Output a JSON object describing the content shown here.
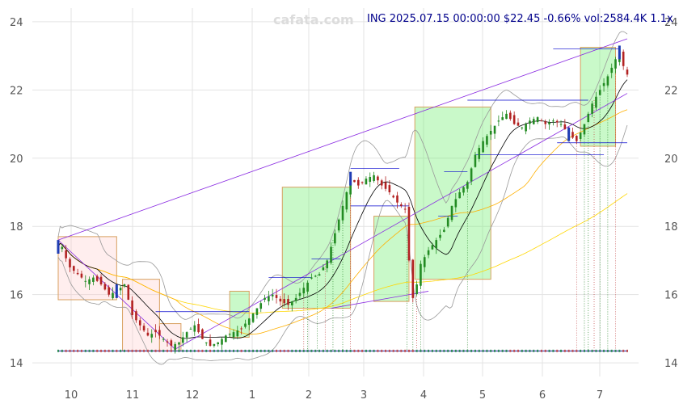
{
  "header": {
    "watermark": "cafata.com",
    "info": "ING 2025.07.15 00:00:00 $22.45 -0.66% vol:2584.4K 1.1x"
  },
  "chart_data": {
    "type": "candlestick",
    "ticker": "ING",
    "x_tick_labels": [
      "10",
      "11",
      "12",
      "1",
      "2",
      "3",
      "4",
      "5",
      "6",
      "7"
    ],
    "y_ticks": [
      14,
      16,
      18,
      20,
      22,
      24
    ],
    "ylim": [
      13.6,
      24.4
    ],
    "grid": true,
    "last_price": 22.45,
    "change_pct": -0.66,
    "volume": "2584.4K",
    "volume_ratio": "1.1x",
    "date": "2025.07.15",
    "close_path": [
      [
        0,
        17.4
      ],
      [
        1,
        17.6
      ],
      [
        3,
        17.2
      ],
      [
        6,
        16.8
      ],
      [
        10,
        16.6
      ],
      [
        14,
        16.4
      ],
      [
        18,
        16.5
      ],
      [
        22,
        16.3
      ],
      [
        26,
        16.0
      ],
      [
        30,
        16.1
      ],
      [
        34,
        16.3
      ],
      [
        38,
        15.4
      ],
      [
        42,
        15.1
      ],
      [
        46,
        14.8
      ],
      [
        50,
        14.9
      ],
      [
        54,
        14.7
      ],
      [
        58,
        14.5
      ],
      [
        62,
        14.6
      ],
      [
        66,
        14.9
      ],
      [
        70,
        15.1
      ],
      [
        74,
        14.7
      ],
      [
        78,
        14.5
      ],
      [
        82,
        14.6
      ],
      [
        86,
        14.8
      ],
      [
        90,
        14.9
      ],
      [
        94,
        15.0
      ],
      [
        98,
        15.3
      ],
      [
        102,
        15.6
      ],
      [
        106,
        15.9
      ],
      [
        110,
        16.0
      ],
      [
        114,
        15.8
      ],
      [
        118,
        15.7
      ],
      [
        122,
        15.9
      ],
      [
        126,
        16.2
      ],
      [
        130,
        16.5
      ],
      [
        134,
        16.6
      ],
      [
        138,
        17.0
      ],
      [
        142,
        17.8
      ],
      [
        146,
        18.6
      ],
      [
        150,
        19.4
      ],
      [
        154,
        19.2
      ],
      [
        158,
        19.4
      ],
      [
        162,
        19.5
      ],
      [
        166,
        19.2
      ],
      [
        170,
        19.0
      ],
      [
        174,
        18.7
      ],
      [
        178,
        18.5
      ],
      [
        180,
        17.0
      ],
      [
        182,
        15.9
      ],
      [
        184,
        16.3
      ],
      [
        186,
        16.9
      ],
      [
        190,
        17.3
      ],
      [
        194,
        17.6
      ],
      [
        198,
        17.9
      ],
      [
        202,
        18.6
      ],
      [
        206,
        19.0
      ],
      [
        210,
        19.3
      ],
      [
        214,
        20.1
      ],
      [
        218,
        20.5
      ],
      [
        222,
        20.8
      ],
      [
        226,
        21.1
      ],
      [
        230,
        21.3
      ],
      [
        234,
        21.0
      ],
      [
        238,
        20.9
      ],
      [
        242,
        21.1
      ],
      [
        246,
        21.2
      ],
      [
        250,
        21.0
      ],
      [
        254,
        21.1
      ],
      [
        258,
        21.0
      ],
      [
        262,
        20.7
      ],
      [
        266,
        20.5
      ],
      [
        270,
        21.0
      ],
      [
        274,
        21.6
      ],
      [
        278,
        22.0
      ],
      [
        282,
        22.4
      ],
      [
        286,
        22.9
      ],
      [
        288,
        23.1
      ],
      [
        290,
        22.7
      ],
      [
        292,
        22.45
      ]
    ]
  }
}
